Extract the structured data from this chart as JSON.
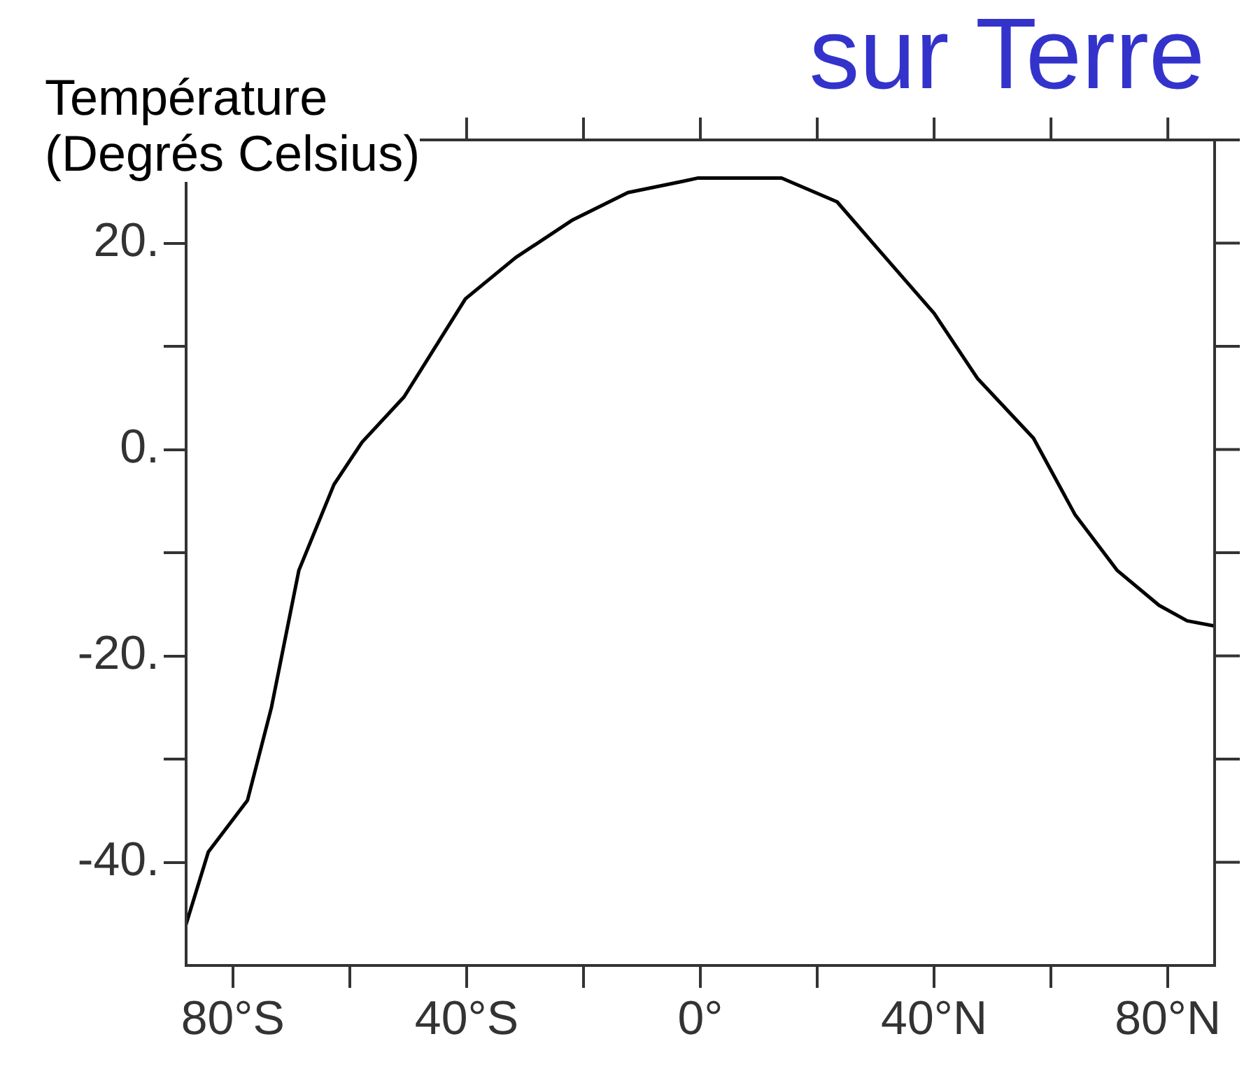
{
  "chart_data": {
    "type": "line",
    "title": "sur Terre",
    "ylabel": "Température\n(Degrés Celsius)",
    "xlim": [
      -88,
      88
    ],
    "ylim": [
      -50,
      30
    ],
    "xticks": [
      {
        "value": -80,
        "label": "80°S"
      },
      {
        "value": -60,
        "label": null
      },
      {
        "value": -40,
        "label": "40°S"
      },
      {
        "value": -20,
        "label": null
      },
      {
        "value": 0,
        "label": "0°"
      },
      {
        "value": 20,
        "label": null
      },
      {
        "value": 40,
        "label": "40°N"
      },
      {
        "value": 60,
        "label": null
      },
      {
        "value": 80,
        "label": "80°N"
      }
    ],
    "yticks": [
      {
        "value": -40,
        "label": "-40."
      },
      {
        "value": -30,
        "label": null
      },
      {
        "value": -20,
        "label": "-20."
      },
      {
        "value": -10,
        "label": null
      },
      {
        "value": 0,
        "label": "0."
      },
      {
        "value": 10,
        "label": null
      },
      {
        "value": 20,
        "label": "20."
      },
      {
        "value": 30,
        "label": null
      }
    ],
    "grid": false,
    "legend": false,
    "marker": "none",
    "line_style": "solid",
    "series": [
      {
        "color": "#000000",
        "x": [
          -88,
          -84.2,
          -77.5,
          -73.4,
          -68.7,
          -62.7,
          -57.9,
          -50.7,
          -40.2,
          -31.6,
          -22,
          -12.4,
          -2.9,
          -0.5,
          13.9,
          23.4,
          30.6,
          40,
          47.4,
          57,
          64.1,
          71.3,
          78.5,
          83.3,
          88
        ],
        "values": [
          -46,
          -39,
          -34,
          -25,
          -11.7,
          -3.4,
          0.7,
          5.1,
          14.6,
          18.6,
          22.2,
          24.9,
          26,
          26.3,
          26.3,
          24,
          19.3,
          13.2,
          6.9,
          1.1,
          -6.3,
          -11.7,
          -15.1,
          -16.6,
          -17.1
        ]
      }
    ]
  }
}
